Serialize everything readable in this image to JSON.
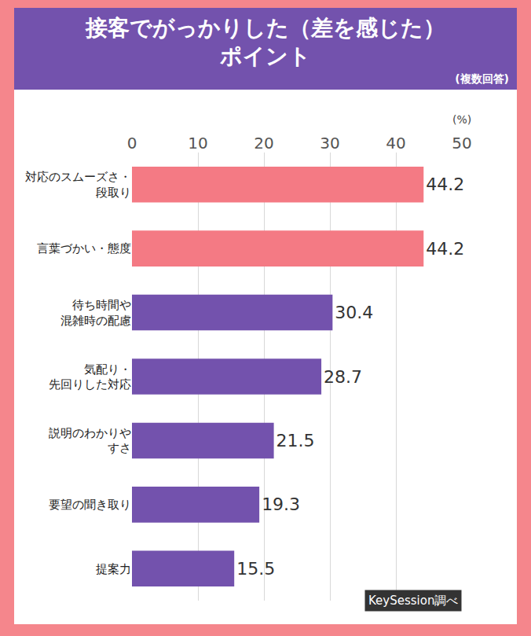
{
  "chart_data": {
    "type": "bar",
    "orientation": "horizontal",
    "title": "接客でがっかりした（差を感じた）ポイント",
    "subtitle": "(複数回答)",
    "x_label": "(%)",
    "categories": [
      "対応のスムーズさ・段取り",
      "言葉づかい・態度",
      "待ち時間や混雑時の配慮",
      "気配り・先回りした対応",
      "説明のわかりやすさ",
      "要望の聞き取り",
      "提案力"
    ],
    "values": [
      44.2,
      44.2,
      30.4,
      28.7,
      21.5,
      19.3,
      15.5
    ],
    "colors": [
      "#f47a84",
      "#f47a84",
      "#7352ad",
      "#7352ad",
      "#7352ad",
      "#7352ad",
      "#7352ad"
    ],
    "xlim": [
      0,
      50
    ],
    "xticks": [
      0,
      10,
      20,
      30,
      40,
      50
    ],
    "grid": true,
    "data_labels": true,
    "annotations": [
      "KeySession調べ"
    ]
  }
}
